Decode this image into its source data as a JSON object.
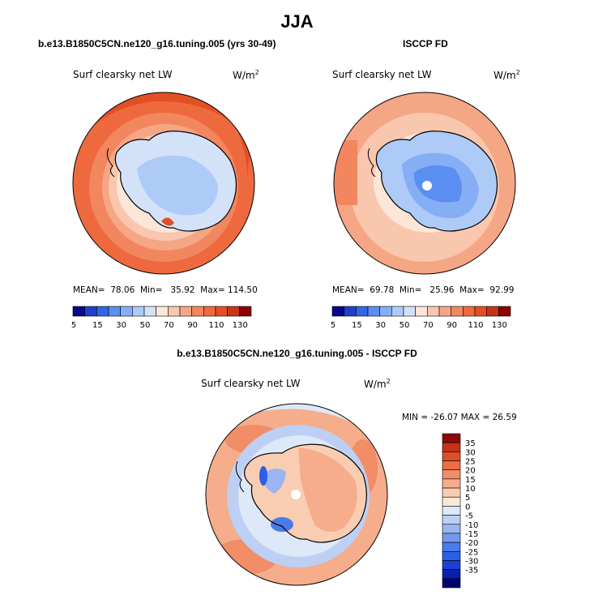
{
  "main_title": "JJA",
  "panels": {
    "model": {
      "case_title": "b.e13.B1850C5CN.ne120_g16.tuning.005 (yrs 30-49)",
      "variable": "Surf clearsky net LW",
      "units_base": "W/m",
      "units_exp": "2",
      "stats": {
        "mean_label": "MEAN=",
        "mean": "78.06",
        "min_label": "Min=",
        "min": "35.92",
        "max_label": "Max=",
        "max": "114.50"
      }
    },
    "obs": {
      "case_title": "ISCCP FD",
      "variable": "Surf clearsky net LW",
      "units_base": "W/m",
      "units_exp": "2",
      "stats": {
        "mean_label": "MEAN=",
        "mean": "69.78",
        "min_label": "Min=",
        "min": "25.96",
        "max_label": "Max=",
        "max": "92.99"
      }
    },
    "diff": {
      "case_title": "b.e13.B1850C5CN.ne120_g16.tuning.005 - ISCCP FD",
      "variable": "Surf clearsky net LW",
      "units_base": "W/m",
      "units_exp": "2",
      "minmax_label": "MIN = -26.07 MAX =  26.59"
    }
  },
  "colors": {
    "abs_scale": [
      "#08088a",
      "#1f3fc9",
      "#3366e6",
      "#5a8ef0",
      "#85aef5",
      "#aecbf7",
      "#d3e2f8",
      "#fbe6d8",
      "#f8c7ad",
      "#f5a685",
      "#f2865f",
      "#ee6a3e",
      "#e34f24",
      "#c8341a",
      "#8b0000"
    ],
    "diff_scale": [
      "#00006e",
      "#0a1fb0",
      "#1a40d8",
      "#2a5fe8",
      "#4a7be9",
      "#7399ec",
      "#9bb5f0",
      "#bdd0f4",
      "#dde8f8",
      "#fbe8d8",
      "#f9cdb2",
      "#f5ad8c",
      "#f18d67",
      "#ec6d44",
      "#e04e25",
      "#c53216",
      "#8c0a08"
    ],
    "land_ice_light": "#d3e2f8",
    "coast": "#000000"
  },
  "chart_data": [
    {
      "type": "heatmap",
      "title": "b.e13.B1850C5CN.ne120_g16.tuning.005 (yrs 30-49)",
      "variable": "Surf clearsky net LW",
      "units": "W/m^2",
      "projection": "south polar stereographic",
      "colorbar_levels": [
        5,
        10,
        15,
        20,
        30,
        40,
        50,
        60,
        70,
        80,
        90,
        100,
        110,
        120,
        130
      ],
      "colorbar_tick_labels": [
        "5",
        "15",
        "30",
        "50",
        "70",
        "90",
        "110",
        "130"
      ],
      "mean": 78.06,
      "min": 35.92,
      "max": 114.5
    },
    {
      "type": "heatmap",
      "title": "ISCCP FD",
      "variable": "Surf clearsky net LW",
      "units": "W/m^2",
      "projection": "south polar stereographic",
      "colorbar_levels": [
        5,
        10,
        15,
        20,
        30,
        40,
        50,
        60,
        70,
        80,
        90,
        100,
        110,
        120,
        130
      ],
      "colorbar_tick_labels": [
        "5",
        "15",
        "30",
        "50",
        "70",
        "90",
        "110",
        "130"
      ],
      "mean": 69.78,
      "min": 25.96,
      "max": 92.99
    },
    {
      "type": "heatmap",
      "title": "b.e13.B1850C5CN.ne120_g16.tuning.005 - ISCCP FD",
      "variable": "Surf clearsky net LW",
      "units": "W/m^2",
      "projection": "south polar stereographic",
      "colorbar_levels": [
        -35,
        -30,
        -25,
        -20,
        -15,
        -10,
        -5,
        0,
        5,
        10,
        15,
        20,
        25,
        30,
        35
      ],
      "colorbar_tick_labels": [
        "35",
        "30",
        "25",
        "20",
        "15",
        "10",
        "5",
        "0",
        "-5",
        "-10",
        "-15",
        "-20",
        "-25",
        "-30",
        "-35"
      ],
      "min": -26.07,
      "max": 26.59
    }
  ]
}
